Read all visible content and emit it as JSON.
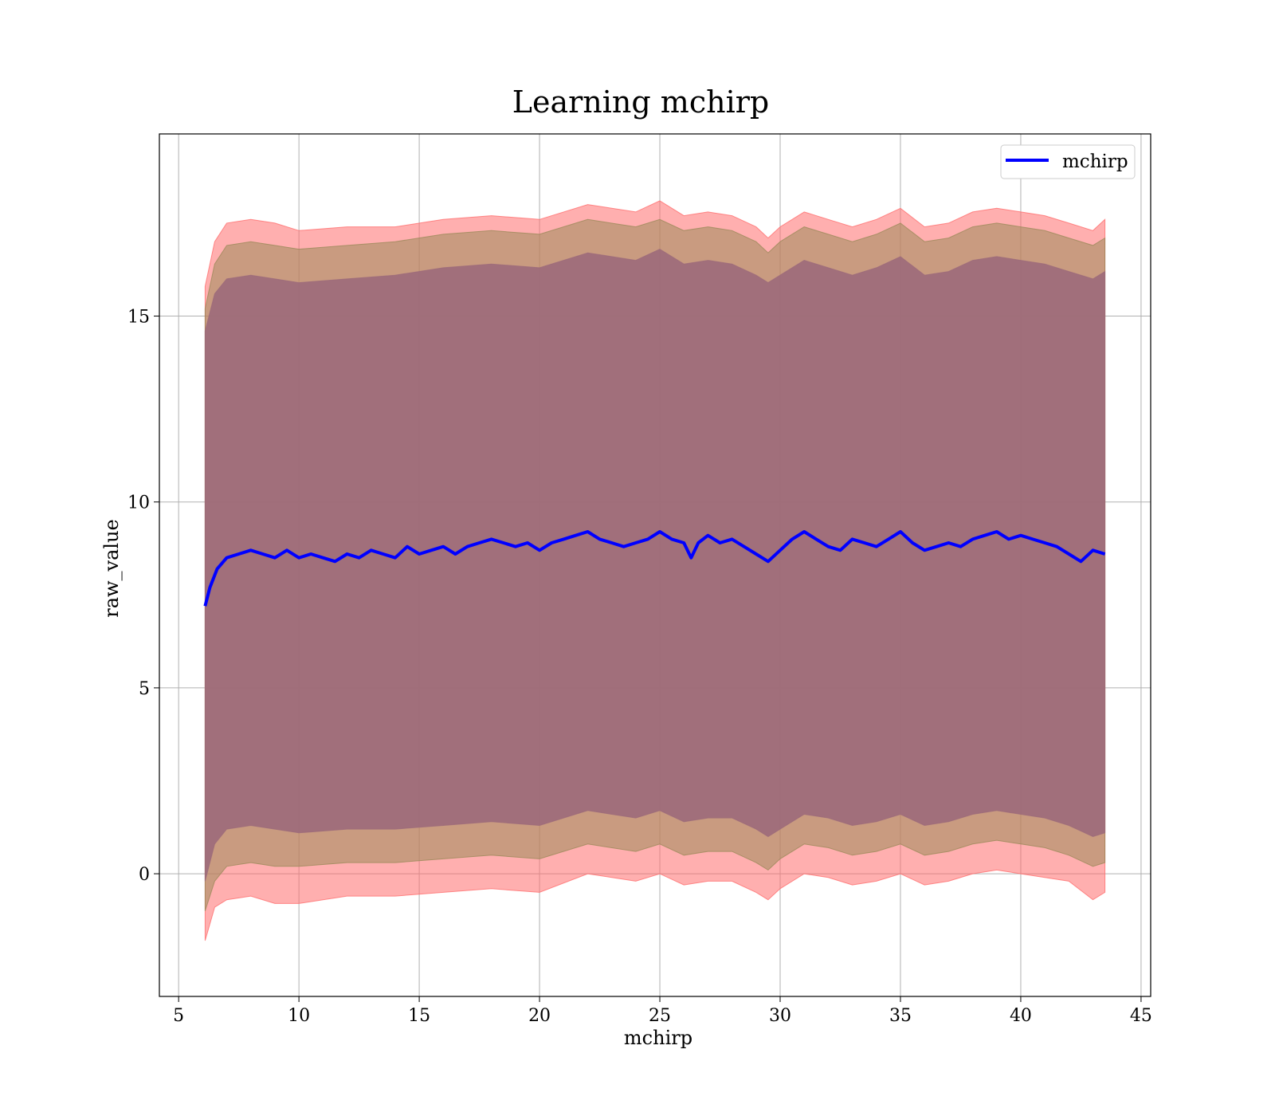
{
  "chart_data": {
    "type": "line",
    "title": "Learning mchirp",
    "xlabel": "mchirp",
    "ylabel": "raw_value",
    "xlim": [
      4.2,
      45.4
    ],
    "ylim": [
      -3.3,
      19.9
    ],
    "xticks": [
      5,
      10,
      15,
      20,
      25,
      30,
      35,
      40,
      45
    ],
    "yticks": [
      0,
      5,
      10,
      15
    ],
    "grid": true,
    "legend": {
      "position": "top-right",
      "entries": [
        "mchirp"
      ]
    },
    "colors": {
      "line": "#0000ff",
      "band_outer": "#ff6e6e",
      "band_mid": "#9c8a5a",
      "band_inner": "#9c6a7a",
      "grid": "#b0b0b0"
    },
    "series": [
      {
        "name": "mchirp",
        "x": [
          6.1,
          6.3,
          6.6,
          7.0,
          7.5,
          8.0,
          8.5,
          9.0,
          9.5,
          10.0,
          10.5,
          11.0,
          11.5,
          12.0,
          12.5,
          13.0,
          13.5,
          14.0,
          14.5,
          15.0,
          15.5,
          16.0,
          16.5,
          17.0,
          17.5,
          18.0,
          18.5,
          19.0,
          19.5,
          20.0,
          20.5,
          21.0,
          21.5,
          22.0,
          22.5,
          23.0,
          23.5,
          24.0,
          24.5,
          25.0,
          25.5,
          26.0,
          26.3,
          26.6,
          27.0,
          27.5,
          28.0,
          28.5,
          29.0,
          29.5,
          30.0,
          30.5,
          31.0,
          31.5,
          32.0,
          32.5,
          33.0,
          33.5,
          34.0,
          34.5,
          35.0,
          35.5,
          36.0,
          36.5,
          37.0,
          37.5,
          38.0,
          38.5,
          39.0,
          39.5,
          40.0,
          40.5,
          41.0,
          41.5,
          42.0,
          42.5,
          43.0,
          43.5
        ],
        "y": [
          7.2,
          7.7,
          8.2,
          8.5,
          8.6,
          8.7,
          8.6,
          8.5,
          8.7,
          8.5,
          8.6,
          8.5,
          8.4,
          8.6,
          8.5,
          8.7,
          8.6,
          8.5,
          8.8,
          8.6,
          8.7,
          8.8,
          8.6,
          8.8,
          8.9,
          9.0,
          8.9,
          8.8,
          8.9,
          8.7,
          8.9,
          9.0,
          9.1,
          9.2,
          9.0,
          8.9,
          8.8,
          8.9,
          9.0,
          9.2,
          9.0,
          8.9,
          8.5,
          8.9,
          9.1,
          8.9,
          9.0,
          8.8,
          8.6,
          8.4,
          8.7,
          9.0,
          9.2,
          9.0,
          8.8,
          8.7,
          9.0,
          8.9,
          8.8,
          9.0,
          9.2,
          8.9,
          8.7,
          8.8,
          8.9,
          8.8,
          9.0,
          9.1,
          9.2,
          9.0,
          9.1,
          9.0,
          8.9,
          8.8,
          8.6,
          8.4,
          8.7,
          8.6
        ]
      },
      {
        "name": "band-outer",
        "x": [
          6.1,
          6.5,
          7.0,
          8.0,
          9.0,
          10.0,
          12.0,
          14.0,
          16.0,
          18.0,
          20.0,
          22.0,
          24.0,
          25.0,
          26.0,
          27.0,
          28.0,
          29.0,
          29.5,
          30.0,
          31.0,
          32.0,
          33.0,
          34.0,
          35.0,
          36.0,
          37.0,
          38.0,
          39.0,
          40.0,
          41.0,
          42.0,
          43.0,
          43.5
        ],
        "upper": [
          15.8,
          17.0,
          17.5,
          17.6,
          17.5,
          17.3,
          17.4,
          17.4,
          17.6,
          17.7,
          17.6,
          18.0,
          17.8,
          18.1,
          17.7,
          17.8,
          17.7,
          17.4,
          17.1,
          17.4,
          17.8,
          17.6,
          17.4,
          17.6,
          17.9,
          17.4,
          17.5,
          17.8,
          17.9,
          17.8,
          17.7,
          17.5,
          17.3,
          17.6
        ],
        "lower": [
          -1.8,
          -0.9,
          -0.7,
          -0.6,
          -0.8,
          -0.8,
          -0.6,
          -0.6,
          -0.5,
          -0.4,
          -0.5,
          0.0,
          -0.2,
          0.0,
          -0.3,
          -0.2,
          -0.2,
          -0.5,
          -0.7,
          -0.4,
          0.0,
          -0.1,
          -0.3,
          -0.2,
          0.0,
          -0.3,
          -0.2,
          0.0,
          0.1,
          0.0,
          -0.1,
          -0.2,
          -0.7,
          -0.5
        ]
      },
      {
        "name": "band-mid",
        "x": [
          6.1,
          6.5,
          7.0,
          8.0,
          9.0,
          10.0,
          12.0,
          14.0,
          16.0,
          18.0,
          20.0,
          22.0,
          24.0,
          25.0,
          26.0,
          27.0,
          28.0,
          29.0,
          29.5,
          30.0,
          31.0,
          32.0,
          33.0,
          34.0,
          35.0,
          36.0,
          37.0,
          38.0,
          39.0,
          40.0,
          41.0,
          42.0,
          43.0,
          43.5
        ],
        "upper": [
          15.2,
          16.4,
          16.9,
          17.0,
          16.9,
          16.8,
          16.9,
          17.0,
          17.2,
          17.3,
          17.2,
          17.6,
          17.4,
          17.6,
          17.3,
          17.4,
          17.3,
          17.0,
          16.7,
          17.0,
          17.4,
          17.2,
          17.0,
          17.2,
          17.5,
          17.0,
          17.1,
          17.4,
          17.5,
          17.4,
          17.3,
          17.1,
          16.9,
          17.1
        ],
        "lower": [
          -1.0,
          -0.2,
          0.2,
          0.3,
          0.2,
          0.2,
          0.3,
          0.3,
          0.4,
          0.5,
          0.4,
          0.8,
          0.6,
          0.8,
          0.5,
          0.6,
          0.6,
          0.3,
          0.1,
          0.4,
          0.8,
          0.7,
          0.5,
          0.6,
          0.8,
          0.5,
          0.6,
          0.8,
          0.9,
          0.8,
          0.7,
          0.5,
          0.2,
          0.3
        ]
      },
      {
        "name": "band-inner",
        "x": [
          6.1,
          6.5,
          7.0,
          8.0,
          9.0,
          10.0,
          12.0,
          14.0,
          16.0,
          18.0,
          20.0,
          22.0,
          24.0,
          25.0,
          26.0,
          27.0,
          28.0,
          29.0,
          29.5,
          30.0,
          31.0,
          32.0,
          33.0,
          34.0,
          35.0,
          36.0,
          37.0,
          38.0,
          39.0,
          40.0,
          41.0,
          42.0,
          43.0,
          43.5
        ],
        "upper": [
          14.6,
          15.6,
          16.0,
          16.1,
          16.0,
          15.9,
          16.0,
          16.1,
          16.3,
          16.4,
          16.3,
          16.7,
          16.5,
          16.8,
          16.4,
          16.5,
          16.4,
          16.1,
          15.9,
          16.1,
          16.5,
          16.3,
          16.1,
          16.3,
          16.6,
          16.1,
          16.2,
          16.5,
          16.6,
          16.5,
          16.4,
          16.2,
          16.0,
          16.2
        ],
        "lower": [
          -0.2,
          0.8,
          1.2,
          1.3,
          1.2,
          1.1,
          1.2,
          1.2,
          1.3,
          1.4,
          1.3,
          1.7,
          1.5,
          1.7,
          1.4,
          1.5,
          1.5,
          1.2,
          1.0,
          1.2,
          1.6,
          1.5,
          1.3,
          1.4,
          1.6,
          1.3,
          1.4,
          1.6,
          1.7,
          1.6,
          1.5,
          1.3,
          1.0,
          1.1
        ]
      }
    ]
  }
}
